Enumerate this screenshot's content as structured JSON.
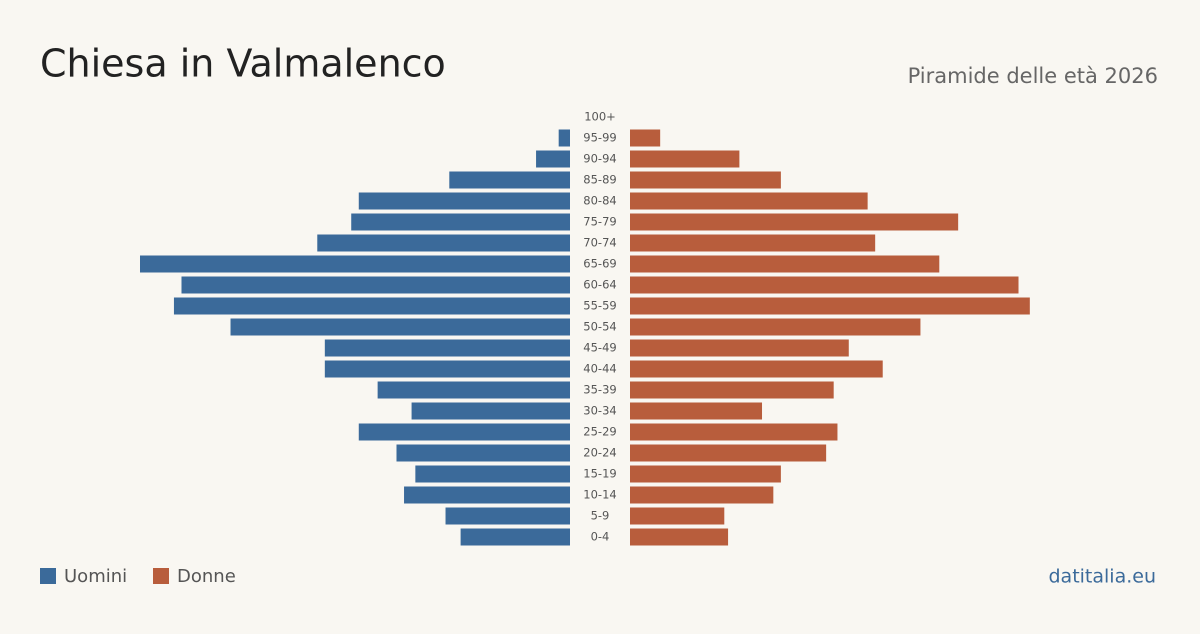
{
  "chart_data": {
    "type": "pyramid",
    "title": "Chiesa in Valmalenco",
    "subtitle": "Piramide delle età 2026",
    "source": "datitalia.eu",
    "categories": [
      "100+",
      "95-99",
      "90-94",
      "85-89",
      "80-84",
      "75-79",
      "70-74",
      "65-69",
      "60-64",
      "55-59",
      "50-54",
      "45-49",
      "40-44",
      "35-39",
      "30-34",
      "25-29",
      "20-24",
      "15-19",
      "10-14",
      "5-9",
      "0-4"
    ],
    "series": [
      {
        "name": "Uomini",
        "color": "#3b6a9a",
        "values": [
          0,
          3,
          9,
          32,
          56,
          58,
          67,
          114,
          103,
          105,
          90,
          65,
          65,
          51,
          42,
          56,
          46,
          41,
          44,
          33,
          29
        ]
      },
      {
        "name": "Donne",
        "color": "#b85d3c",
        "values": [
          0,
          8,
          29,
          40,
          63,
          87,
          65,
          82,
          103,
          106,
          77,
          58,
          67,
          54,
          35,
          55,
          52,
          40,
          38,
          25,
          26
        ]
      }
    ]
  }
}
